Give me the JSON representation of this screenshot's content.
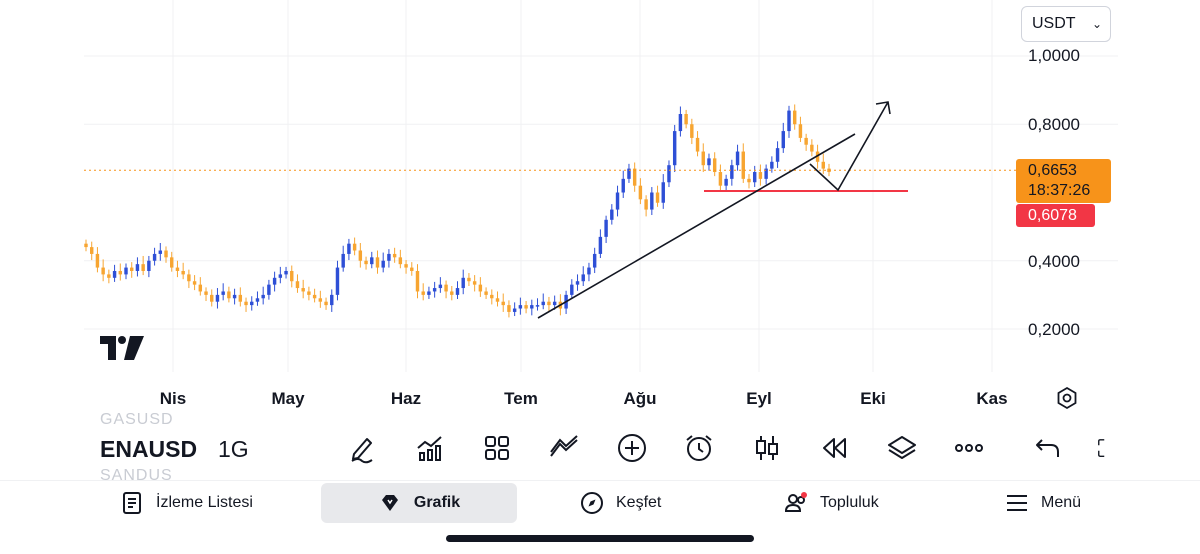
{
  "chart": {
    "currency": "USDT",
    "price_axis": [
      "1,0000",
      "0,8000",
      "0,4000",
      "0,2000"
    ],
    "current_price": "0,6653",
    "countdown": "18:37:26",
    "red_level": "0,6078",
    "months": [
      "Nis",
      "May",
      "Haz",
      "Tem",
      "Ağu",
      "Eyl",
      "Eki",
      "Kas"
    ],
    "colors": {
      "up": "#2e4fd6",
      "down": "#f7a531",
      "red_line": "#f23645",
      "current_tag": "#f7931a"
    }
  },
  "chart_data": {
    "type": "candlestick",
    "title": "",
    "symbol": "ENAUSDT",
    "interval": "1G",
    "ylim": [
      0.1,
      1.1
    ],
    "y_ticks": [
      1.0,
      0.8,
      0.4,
      0.2
    ],
    "x_ticks": [
      "Nis",
      "May",
      "Haz",
      "Tem",
      "Ağu",
      "Eyl",
      "Eki",
      "Kas"
    ],
    "current_price": 0.6653,
    "horizontal_level": 0.6078,
    "series_close": [
      0.44,
      0.42,
      0.38,
      0.36,
      0.35,
      0.37,
      0.36,
      0.38,
      0.37,
      0.39,
      0.37,
      0.4,
      0.42,
      0.43,
      0.41,
      0.38,
      0.37,
      0.36,
      0.34,
      0.33,
      0.31,
      0.3,
      0.28,
      0.3,
      0.31,
      0.29,
      0.3,
      0.28,
      0.27,
      0.28,
      0.29,
      0.3,
      0.33,
      0.35,
      0.36,
      0.37,
      0.34,
      0.32,
      0.31,
      0.3,
      0.29,
      0.28,
      0.27,
      0.3,
      0.38,
      0.42,
      0.45,
      0.43,
      0.4,
      0.39,
      0.41,
      0.38,
      0.4,
      0.42,
      0.41,
      0.39,
      0.38,
      0.37,
      0.31,
      0.3,
      0.31,
      0.32,
      0.33,
      0.31,
      0.3,
      0.32,
      0.35,
      0.34,
      0.33,
      0.31,
      0.3,
      0.29,
      0.28,
      0.27,
      0.25,
      0.26,
      0.27,
      0.26,
      0.27,
      0.27,
      0.28,
      0.27,
      0.28,
      0.26,
      0.3,
      0.33,
      0.34,
      0.36,
      0.38,
      0.42,
      0.47,
      0.52,
      0.55,
      0.6,
      0.64,
      0.67,
      0.62,
      0.58,
      0.55,
      0.6,
      0.57,
      0.63,
      0.68,
      0.78,
      0.83,
      0.8,
      0.76,
      0.72,
      0.68,
      0.7,
      0.66,
      0.62,
      0.64,
      0.68,
      0.72,
      0.64,
      0.63,
      0.66,
      0.64,
      0.67,
      0.69,
      0.73,
      0.78,
      0.84,
      0.8,
      0.76,
      0.74,
      0.72,
      0.69,
      0.67,
      0.66
    ],
    "annotations": [
      "ascending trendline",
      "red horizontal support line",
      "projected breakout arrow"
    ]
  },
  "toolbar": {
    "symbol": "ENAUSDT",
    "symbol_shown": "ENAUSD",
    "interval": "1G",
    "ghost_above": "GASUSD",
    "ghost_below": "SANDUS",
    "tools": [
      "pen-icon",
      "indicators-icon",
      "grid-icon",
      "compare-icon",
      "add-icon",
      "alarm-icon",
      "candles-icon",
      "replay-icon",
      "layers-icon",
      "more-icon",
      "undo-icon",
      "fullscreen-icon"
    ]
  },
  "tabs": [
    {
      "label": "İzleme Listesi",
      "icon": "list-icon"
    },
    {
      "label": "Grafik",
      "icon": "diamond-icon"
    },
    {
      "label": "Keşfet",
      "icon": "compass-icon"
    },
    {
      "label": "Topluluk",
      "icon": "community-icon"
    },
    {
      "label": "Menü",
      "icon": "hamburger-icon"
    }
  ]
}
